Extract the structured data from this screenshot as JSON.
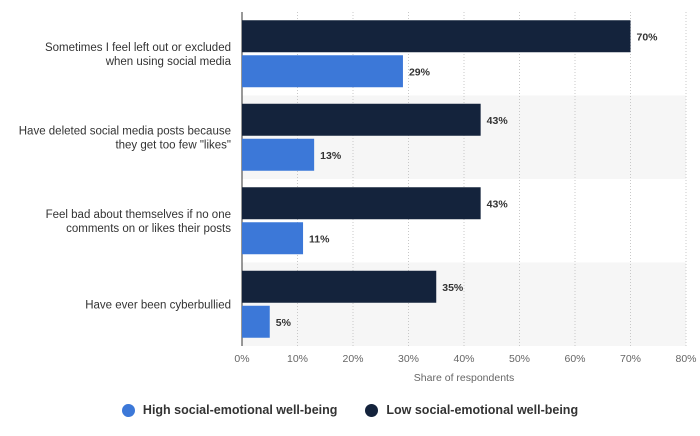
{
  "chart_data": {
    "type": "bar",
    "orientation": "horizontal",
    "categories": [
      [
        "Sometimes I feel left out or excluded",
        "when using social media"
      ],
      [
        "Have deleted social media posts because",
        "they get too few \"likes\""
      ],
      [
        "Feel bad about themselves if no one",
        "comments on or likes their posts"
      ],
      [
        "Have ever been cyberbullied"
      ]
    ],
    "series": [
      {
        "name": "Low social-emotional well-being",
        "color": "#14233c",
        "values": [
          70,
          43,
          43,
          35
        ]
      },
      {
        "name": "High social-emotional well-being",
        "color": "#3c78d8",
        "values": [
          29,
          13,
          11,
          5
        ]
      }
    ],
    "value_suffix": "%",
    "xlim": [
      0,
      80
    ],
    "xticks": [
      "0%",
      "10%",
      "20%",
      "30%",
      "40%",
      "50%",
      "60%",
      "70%",
      "80%"
    ],
    "xlabel": "Share of respondents",
    "grid": true,
    "legend_placement": "bottom-center"
  },
  "legend": [
    {
      "label": "High social-emotional well-being",
      "color": "#3c78d8"
    },
    {
      "label": "Low social-emotional well-being",
      "color": "#14233c"
    }
  ]
}
